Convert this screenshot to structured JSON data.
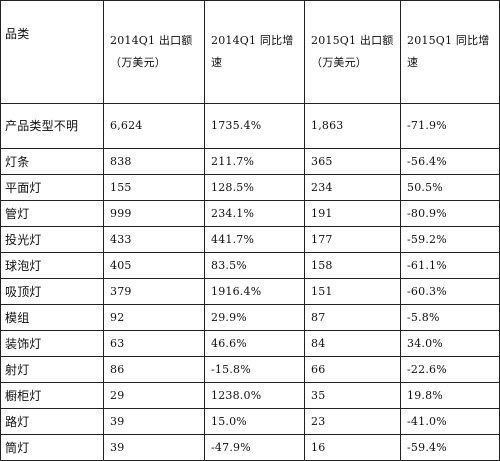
{
  "table": {
    "headers": [
      "品类",
      "2014Q1 出口额（万美元）",
      "2014Q1 同比增速",
      "2015Q1 出口额（万美元）",
      "2015Q1 同比增速"
    ],
    "rows": [
      [
        "产品类型不明",
        "6,624",
        "1735.4%",
        "1,863",
        "-71.9%"
      ],
      [
        "灯条",
        "838",
        "211.7%",
        "365",
        "-56.4%"
      ],
      [
        "平面灯",
        "155",
        "128.5%",
        "234",
        "50.5%"
      ],
      [
        "管灯",
        "999",
        "234.1%",
        "191",
        "-80.9%"
      ],
      [
        "投光灯",
        "433",
        "441.7%",
        "177",
        "-59.2%"
      ],
      [
        "球泡灯",
        "405",
        "83.5%",
        "158",
        "-61.1%"
      ],
      [
        "吸顶灯",
        "379",
        "1916.4%",
        "151",
        "-60.3%"
      ],
      [
        "模组",
        "92",
        "29.9%",
        "87",
        "-5.8%"
      ],
      [
        "装饰灯",
        "63",
        "46.6%",
        "84",
        "34.0%"
      ],
      [
        "射灯",
        "86",
        "-15.8%",
        "66",
        "-22.6%"
      ],
      [
        "橱柜灯",
        "29",
        "1238.0%",
        "35",
        "19.8%"
      ],
      [
        "路灯",
        "39",
        "15.0%",
        "23",
        "-41.0%"
      ],
      [
        "筒灯",
        "39",
        "-47.9%",
        "16",
        "-59.4%"
      ]
    ]
  }
}
